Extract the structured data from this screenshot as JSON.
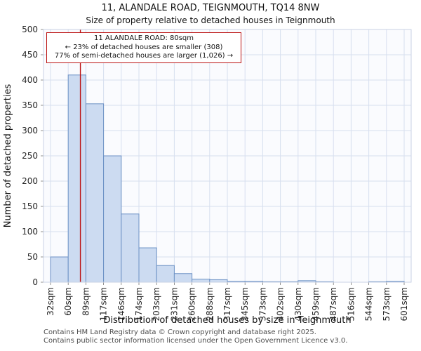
{
  "chart_data": {
    "type": "bar",
    "title": "11, ALANDALE ROAD, TEIGNMOUTH, TQ14 8NW",
    "subtitle": "Size of property relative to detached houses in Teignmouth",
    "xlabel": "Distribution of detached houses by size in Teignmouth",
    "ylabel": "Number of detached properties",
    "bin_edges": [
      32,
      60,
      89,
      117,
      146,
      174,
      203,
      231,
      260,
      288,
      317,
      345,
      373,
      402,
      430,
      459,
      487,
      516,
      544,
      573,
      601
    ],
    "bin_labels": [
      "32sqm",
      "60sqm",
      "89sqm",
      "117sqm",
      "146sqm",
      "174sqm",
      "203sqm",
      "231sqm",
      "260sqm",
      "288sqm",
      "317sqm",
      "345sqm",
      "373sqm",
      "402sqm",
      "430sqm",
      "459sqm",
      "487sqm",
      "516sqm",
      "544sqm",
      "573sqm",
      "601sqm"
    ],
    "values": [
      50,
      410,
      353,
      250,
      135,
      68,
      33,
      17,
      6,
      5,
      2,
      2,
      1,
      1,
      3,
      1,
      0,
      0,
      1,
      2
    ],
    "ylim": [
      0,
      500
    ],
    "ytick_step": 50,
    "grid": true,
    "marker": {
      "value": 80,
      "label": "11 ALANDALE ROAD: 80sqm"
    },
    "annotation": {
      "lines": [
        "11 ALANDALE ROAD: 80sqm",
        "← 23% of detached houses are smaller (308)",
        "77% of semi-detached houses are larger (1,026) →"
      ]
    },
    "colors": {
      "bar_fill": "#ccdbf1",
      "bar_stroke": "#6d92c5",
      "marker": "#bb1111",
      "grid": "#d7dfef",
      "spine": "#c9d2e4",
      "plot_bg": "#fafbfe"
    }
  },
  "footer": {
    "line1": "Contains HM Land Registry data © Crown copyright and database right 2025.",
    "line2": "Contains public sector information licensed under the Open Government Licence v3.0."
  }
}
